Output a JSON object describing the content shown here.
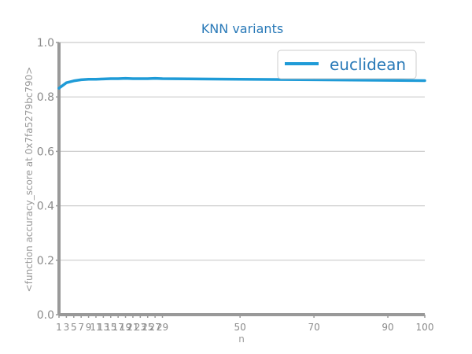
{
  "chart_data": {
    "type": "line",
    "title": "KNN variants",
    "xlabel": "n",
    "ylabel": "<function accuracy_score at 0x7fa5279bc790>",
    "xlim": [
      1,
      100
    ],
    "ylim": [
      0.0,
      1.0
    ],
    "yticks": [
      "0.0",
      "0.2",
      "0.4",
      "0.6",
      "0.8",
      "1.0"
    ],
    "xticks": [
      1,
      3,
      5,
      7,
      9,
      11,
      13,
      15,
      17,
      19,
      21,
      23,
      25,
      27,
      29,
      50,
      70,
      90,
      100
    ],
    "grid": true,
    "legend_position": "top-right",
    "series": [
      {
        "name": "euclidean",
        "color": "#1f9bd7",
        "x": [
          1,
          3,
          5,
          7,
          9,
          11,
          13,
          15,
          17,
          19,
          21,
          23,
          25,
          27,
          29,
          50,
          70,
          90,
          100
        ],
        "y": [
          0.832,
          0.852,
          0.859,
          0.863,
          0.865,
          0.865,
          0.866,
          0.867,
          0.867,
          0.868,
          0.867,
          0.867,
          0.867,
          0.868,
          0.867,
          0.865,
          0.863,
          0.861,
          0.86
        ]
      }
    ]
  }
}
